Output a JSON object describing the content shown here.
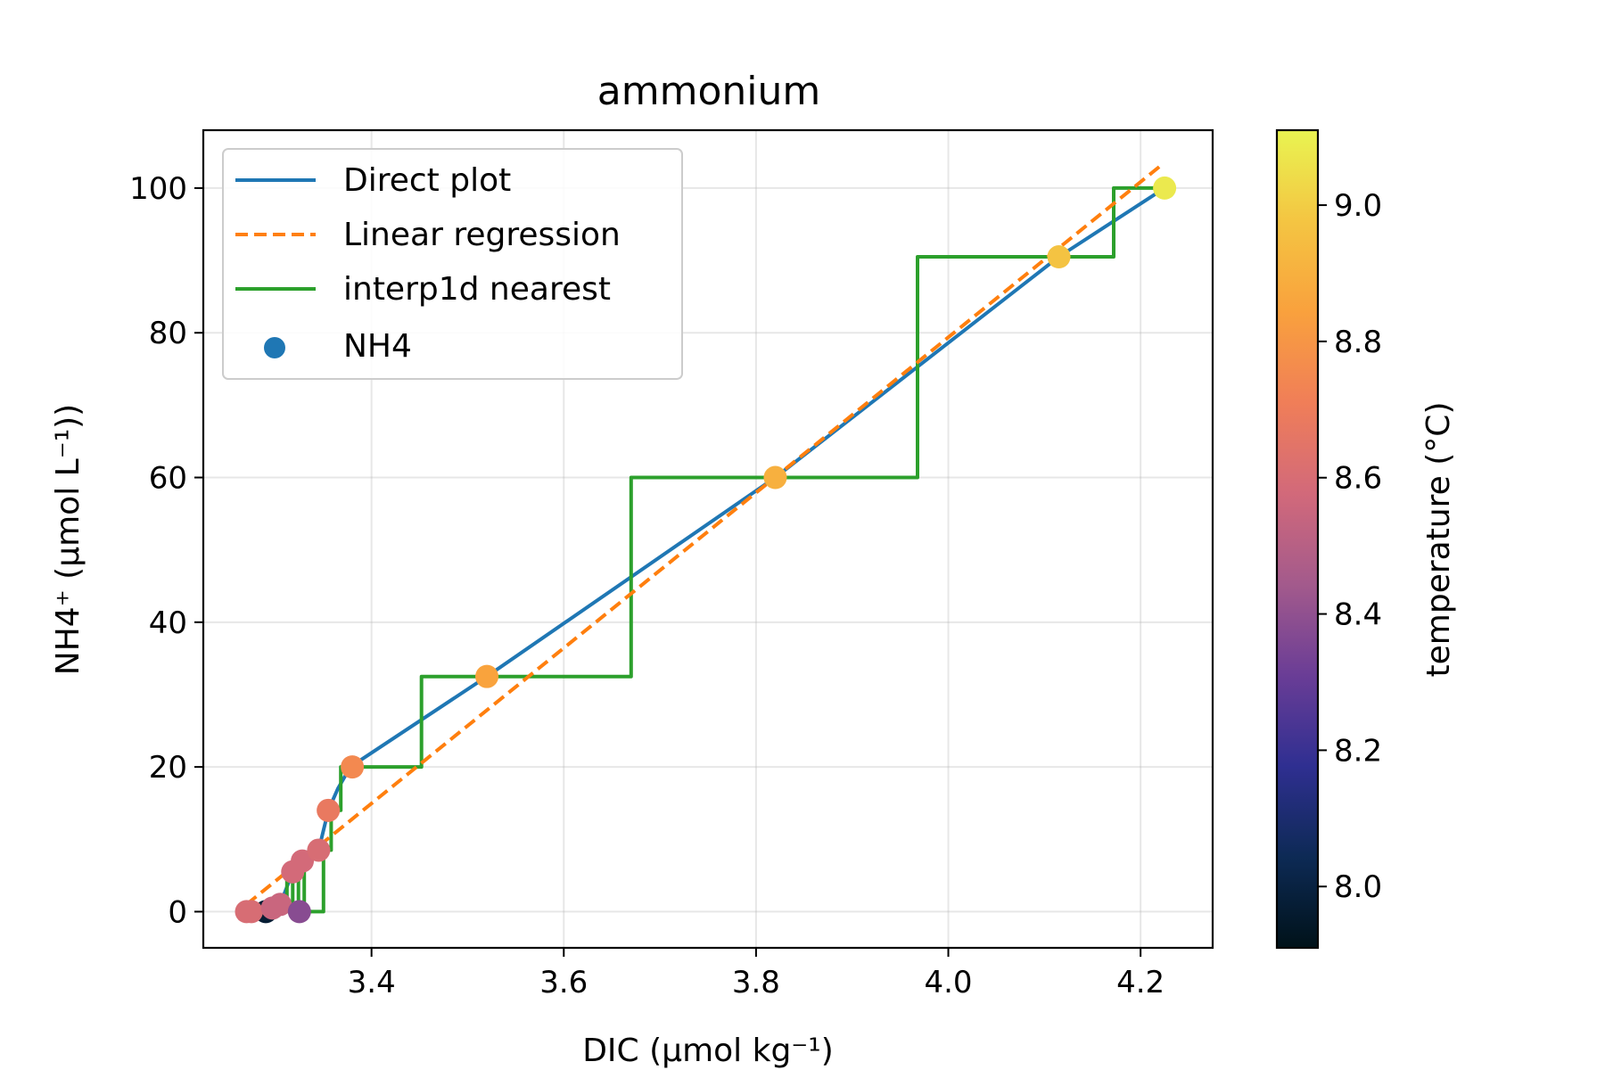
{
  "chart_data": {
    "type": "line",
    "title": "ammonium",
    "xlabel": "DIC (µmol kg⁻¹)",
    "ylabel": "NH4⁺ (µmol L⁻¹))",
    "xlim": [
      3.225,
      4.275
    ],
    "ylim": [
      -5,
      108
    ],
    "x_ticks": [
      3.4,
      3.6,
      3.8,
      4.0,
      4.2
    ],
    "x_tick_labels": [
      "3.4",
      "3.6",
      "3.8",
      "4.0",
      "4.2"
    ],
    "y_ticks": [
      0,
      20,
      40,
      60,
      80,
      100
    ],
    "y_tick_labels": [
      "0",
      "20",
      "40",
      "60",
      "80",
      "100"
    ],
    "grid": true,
    "legend_position": "top-left",
    "colors": {
      "direct": "#1f77b4",
      "regression": "#ff7f0e",
      "nearest": "#2ca02c",
      "points": "#1f77b4"
    },
    "colorbar": {
      "label": "temperature (°C)",
      "min": 7.91,
      "max": 9.11,
      "ticks": [
        8.0,
        8.2,
        8.4,
        8.6,
        8.8,
        9.0
      ],
      "tick_labels": [
        "8.0",
        "8.2",
        "8.4",
        "8.6",
        "8.8",
        "9.0"
      ],
      "colormap": [
        "#001219",
        "#0d2a55",
        "#2f2f91",
        "#6a3d96",
        "#a35a8c",
        "#d2697a",
        "#f07e58",
        "#f9a13d",
        "#f4c542",
        "#e9f451"
      ]
    },
    "series": [
      {
        "name": "Direct plot",
        "kind": "line",
        "style": "solid",
        "x": [
          3.27,
          3.29,
          3.305,
          3.318,
          3.328,
          3.345,
          3.355,
          3.365,
          3.378,
          3.52,
          3.82,
          4.115,
          4.225
        ],
        "y": [
          0,
          0,
          1,
          5.5,
          7,
          8.5,
          14,
          17,
          20,
          32.5,
          60,
          90.5,
          100
        ]
      },
      {
        "name": "Linear regression",
        "kind": "line",
        "style": "dashed",
        "x": [
          3.27,
          4.22
        ],
        "y": [
          1,
          103
        ]
      },
      {
        "name": "interp1d nearest",
        "kind": "line",
        "style": "step",
        "x": [
          3.27,
          3.312,
          3.312,
          3.318,
          3.318,
          3.324,
          3.324,
          3.33,
          3.33,
          3.35,
          3.35,
          3.358,
          3.358,
          3.368,
          3.368,
          3.452,
          3.452,
          3.67,
          3.67,
          3.968,
          3.968,
          4.172,
          4.172,
          4.222
        ],
        "y": [
          0,
          0,
          5.5,
          5.5,
          0,
          0,
          7,
          7,
          0,
          0,
          8.5,
          8.5,
          14,
          14,
          20,
          20,
          32.5,
          32.5,
          60,
          60,
          90.5,
          90.5,
          100,
          100
        ]
      },
      {
        "name": "NH4",
        "kind": "scatter",
        "x": [
          3.29,
          3.27,
          3.275,
          3.297,
          3.305,
          3.318,
          3.328,
          3.325,
          3.345,
          3.355,
          3.38,
          3.52,
          3.82,
          4.115,
          4.225
        ],
        "y": [
          0,
          0,
          0,
          0.5,
          1,
          5.5,
          7,
          0,
          8.5,
          14,
          20,
          32.5,
          60,
          90.5,
          100
        ],
        "temperature": [
          7.97,
          8.6,
          8.6,
          8.55,
          8.55,
          8.58,
          8.58,
          8.38,
          8.6,
          8.68,
          8.75,
          8.85,
          8.9,
          8.97,
          9.08
        ]
      }
    ]
  }
}
